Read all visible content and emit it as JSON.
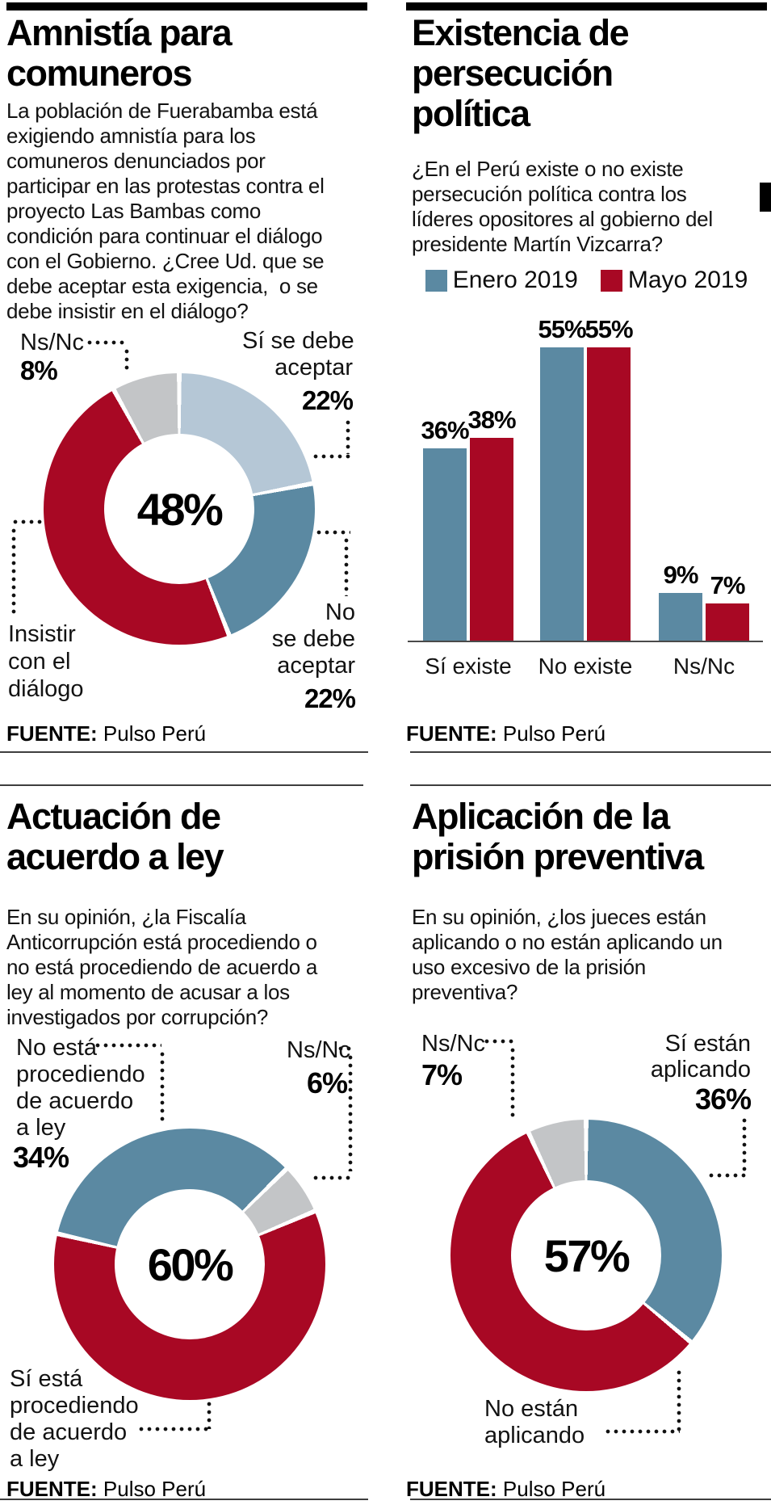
{
  "colors": {
    "red": "#a80824",
    "blue": "#5b89a2",
    "light_blue": "#b5c7d6",
    "gray": "#c3c5c7",
    "black": "#000000"
  },
  "source": {
    "label": "FUENTE:",
    "value": " Pulso Perú"
  },
  "panels": {
    "amnistia": {
      "title": "Amnistía para\ncomuneros",
      "body": "La población de Fuerabamba está\nexigiendo amnistía para los\ncomuneros denunciados por\nparticipar en las protestas contra el\nproyecto Las Bambas como\ncondición para continuar el diálogo\ncon el Gobierno. ¿Cree Ud. que se\ndebe aceptar esta exigencia,  o se\ndebe insistir en el diálogo?",
      "center_pct": "48%",
      "label_nsnc": "Ns/Nc",
      "pct_nsnc": "8%",
      "label_si": "Sí se debe\naceptar",
      "pct_si": "22%",
      "label_no": "No\nse debe\naceptar",
      "pct_no": "22%",
      "label_insistir": "Insistir\ncon el\ndiálogo"
    },
    "persecucion": {
      "title": "Existencia de\npersecución\npolítica",
      "body": "¿En el Perú existe o no existe\npersecución política contra los\nlíderes opositores al gobierno del\npresidente Martín Vizcarra?"
    },
    "actuacion": {
      "title": "Actuación de\nacuerdo a ley",
      "body": "En su opinión, ¿la Fiscalía\nAnticorrupción está procediendo o\nno está procediendo de acuerdo a\nley al momento de acusar a los\ninvestigados por corrupción?",
      "center_pct": "60%",
      "label_noesta": "No está\nprocediendo\nde acuerdo\na ley",
      "pct_noesta": "34%",
      "label_nsnc": "Ns/Nc",
      "pct_nsnc": "6%",
      "label_siesta": "Sí está\nprocediendo\nde acuerdo\na ley"
    },
    "prision": {
      "title": "Aplicación de la\nprisión preventiva",
      "body": "En su opinión, ¿los jueces están\naplicando o no están aplicando un\nuso excesivo de la prisión\npreventiva?",
      "center_pct": "57%",
      "label_nsnc": "Ns/Nc",
      "pct_nsnc": "7%",
      "label_sistan": "Sí están\naplicando",
      "pct_sistan": "36%",
      "label_noestan": "No están\naplicando"
    }
  },
  "chart_data": [
    {
      "type": "donut",
      "title": "Amnistía para comuneros",
      "center_label": "48%",
      "start_angle": 0,
      "slices": [
        {
          "label": "Sí se debe aceptar",
          "value": 22,
          "color": "light_blue"
        },
        {
          "label": "No se debe aceptar",
          "value": 22,
          "color": "blue"
        },
        {
          "label": "Insistir con el diálogo",
          "value": 48,
          "color": "red"
        },
        {
          "label": "Ns/Nc",
          "value": 8,
          "color": "gray"
        }
      ]
    },
    {
      "type": "bar",
      "title": "Existencia de persecución política",
      "categories": [
        "Sí existe",
        "No existe",
        "Ns/Nc"
      ],
      "series": [
        {
          "name": "Enero 2019",
          "color": "blue",
          "values": [
            36,
            55,
            9
          ]
        },
        {
          "name": "Mayo 2019",
          "color": "red",
          "values": [
            38,
            55,
            7
          ]
        }
      ],
      "unit": "%",
      "ylim": [
        0,
        60
      ],
      "legend_position": "top"
    },
    {
      "type": "donut",
      "title": "Actuación de acuerdo a ley",
      "center_label": "60%",
      "start_angle": 283,
      "slices": [
        {
          "label": "No está procediendo de acuerdo a ley",
          "value": 34,
          "color": "blue"
        },
        {
          "label": "Ns/Nc",
          "value": 6,
          "color": "gray"
        },
        {
          "label": "Sí está procediendo de acuerdo a ley",
          "value": 60,
          "color": "red"
        }
      ]
    },
    {
      "type": "donut",
      "title": "Aplicación de la prisión preventiva",
      "center_label": "57%",
      "start_angle": 0,
      "slices": [
        {
          "label": "Sí están aplicando",
          "value": 36,
          "color": "blue"
        },
        {
          "label": "No están aplicando",
          "value": 57,
          "color": "red"
        },
        {
          "label": "Ns/Nc",
          "value": 7,
          "color": "gray"
        }
      ]
    }
  ]
}
